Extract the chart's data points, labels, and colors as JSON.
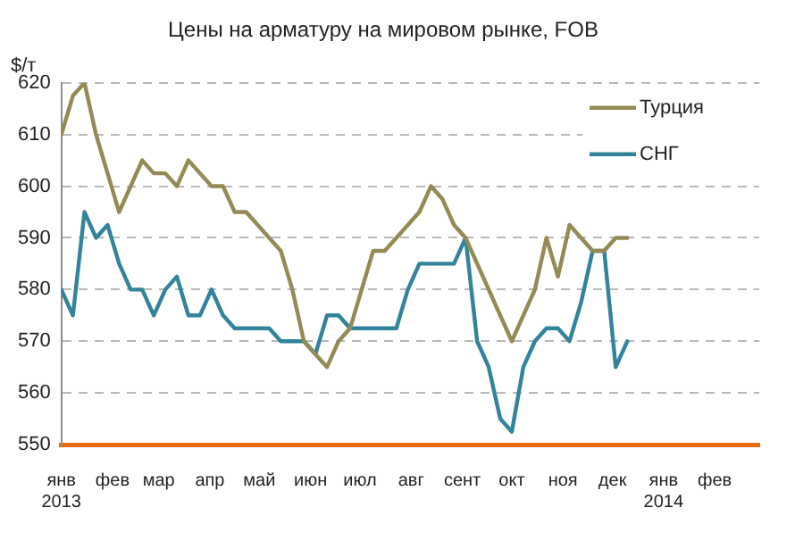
{
  "chart_data": {
    "type": "line",
    "title": "Цены на арматуру на мировом рынке, FOB",
    "ylabel": "$/т",
    "xlim": [
      "2013-01-01",
      "2014-02-28"
    ],
    "xticks": [
      {
        "value": "2013-01-01",
        "label": "янв\n2013"
      },
      {
        "value": "2013-02-01",
        "label": "фев"
      },
      {
        "value": "2013-03-01",
        "label": "мар"
      },
      {
        "value": "2013-04-01",
        "label": "апр"
      },
      {
        "value": "2013-05-01",
        "label": "май"
      },
      {
        "value": "2013-06-01",
        "label": "июн"
      },
      {
        "value": "2013-07-01",
        "label": "июл"
      },
      {
        "value": "2013-08-01",
        "label": "авг"
      },
      {
        "value": "2013-09-01",
        "label": "сент"
      },
      {
        "value": "2013-10-01",
        "label": "окт"
      },
      {
        "value": "2013-11-01",
        "label": "ноя"
      },
      {
        "value": "2013-12-01",
        "label": "дек"
      },
      {
        "value": "2014-01-01",
        "label": "янв\n2014"
      },
      {
        "value": "2014-02-01",
        "label": "фев"
      }
    ],
    "ylim": [
      550,
      620
    ],
    "yticks": [
      550,
      560,
      570,
      580,
      590,
      600,
      610,
      620
    ],
    "grid": "y",
    "legend": "top right",
    "marker": "none",
    "line_style": "solid",
    "series": [
      {
        "name": "Турция",
        "color": "#948a54",
        "x": [
          "2013-01-01",
          "2013-01-08",
          "2013-01-15",
          "2013-01-22",
          "2013-02-05",
          "2013-02-19",
          "2013-02-26",
          "2013-03-05",
          "2013-03-12",
          "2013-03-19",
          "2013-04-02",
          "2013-04-09",
          "2013-04-16",
          "2013-04-23",
          "2013-04-30",
          "2013-05-14",
          "2013-05-21",
          "2013-05-28",
          "2013-06-11",
          "2013-06-18",
          "2013-06-25",
          "2013-07-09",
          "2013-07-16",
          "2013-07-23",
          "2013-07-30",
          "2013-08-06",
          "2013-08-13",
          "2013-08-20",
          "2013-08-27",
          "2013-09-03",
          "2013-10-01",
          "2013-10-15",
          "2013-10-22",
          "2013-10-29",
          "2013-11-05",
          "2013-11-12",
          "2013-11-19",
          "2013-11-26",
          "2013-12-03",
          "2013-12-10"
        ],
        "values": [
          610,
          617.5,
          620,
          610,
          595,
          605,
          602.5,
          602.5,
          600,
          605,
          600,
          600,
          595,
          595,
          592.5,
          587.5,
          580,
          570,
          565,
          570,
          572.5,
          587.5,
          587.5,
          590,
          592.5,
          595,
          600,
          597.5,
          592.5,
          590,
          570,
          580,
          590,
          582.5,
          592.5,
          590,
          587.5,
          587.5,
          590,
          590
        ]
      },
      {
        "name": "СНГ",
        "color": "#31849b",
        "x": [
          "2013-01-01",
          "2013-01-08",
          "2013-01-15",
          "2013-01-22",
          "2013-01-29",
          "2013-02-05",
          "2013-02-12",
          "2013-02-19",
          "2013-02-26",
          "2013-03-05",
          "2013-03-12",
          "2013-03-19",
          "2013-03-26",
          "2013-04-02",
          "2013-04-09",
          "2013-04-16",
          "2013-04-23",
          "2013-04-30",
          "2013-05-07",
          "2013-05-14",
          "2013-05-21",
          "2013-05-28",
          "2013-06-04",
          "2013-06-11",
          "2013-06-18",
          "2013-06-25",
          "2013-07-23",
          "2013-07-30",
          "2013-08-06",
          "2013-08-13",
          "2013-08-20",
          "2013-08-27",
          "2013-09-03",
          "2013-09-10",
          "2013-09-17",
          "2013-09-24",
          "2013-10-01",
          "2013-10-08",
          "2013-10-15",
          "2013-10-22",
          "2013-10-29",
          "2013-11-05",
          "2013-11-12",
          "2013-11-19",
          "2013-11-26",
          "2013-12-03",
          "2013-12-10"
        ],
        "values": [
          580,
          575,
          595,
          590,
          592.5,
          585,
          580,
          580,
          575,
          580,
          582.5,
          575,
          575,
          580,
          575,
          572.5,
          572.5,
          572.5,
          572.5,
          570,
          570,
          570,
          567.5,
          575,
          575,
          572.5,
          572.5,
          580,
          585,
          585,
          585,
          585,
          590,
          570,
          565,
          555,
          552.5,
          565,
          570,
          572.5,
          572.5,
          570,
          577.5,
          587.5,
          587.5,
          565,
          570
        ]
      }
    ]
  }
}
